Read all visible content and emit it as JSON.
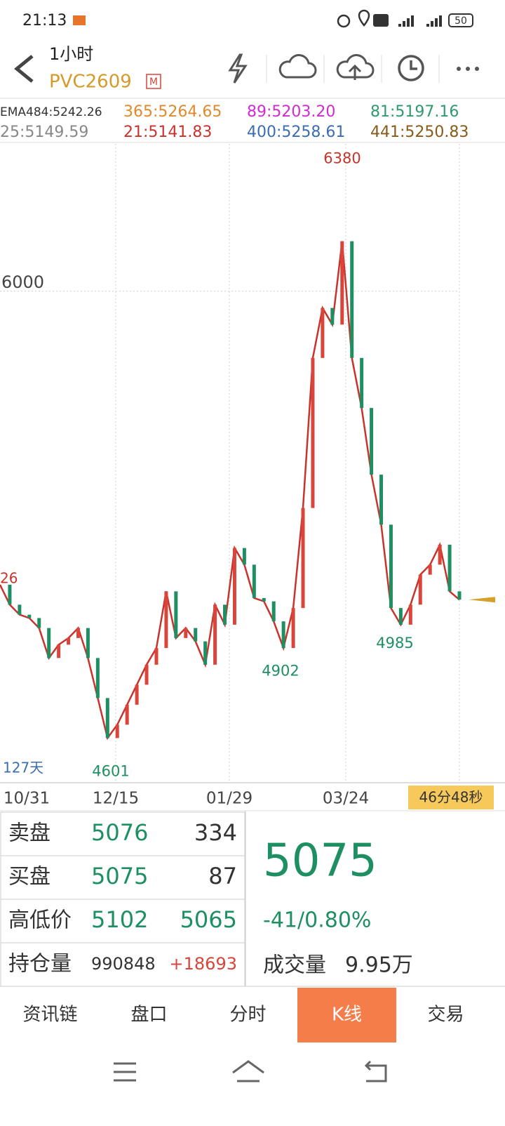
{
  "status_bar": {
    "time": "21:13",
    "battery": "50"
  },
  "header": {
    "period": "1小时",
    "symbol": "PVC2609",
    "badge": "M"
  },
  "indicators": [
    {
      "label": "EMA484:5242.26",
      "color": "#333333"
    },
    {
      "label": "365:5264.65",
      "color": "#e08a2c"
    },
    {
      "label": "89:5203.20",
      "color": "#d12bd1"
    },
    {
      "label": "81:5197.16",
      "color": "#2e9a6e"
    },
    {
      "label": "25:5149.59",
      "color": "#888888"
    },
    {
      "label": "21:5141.83",
      "color": "#c8342c"
    },
    {
      "label": "400:5258.61",
      "color": "#3b6db3"
    },
    {
      "label": "441:5250.83",
      "color": "#8a5a1a"
    }
  ],
  "chart": {
    "ylim": [
      4526,
      6442
    ],
    "yticks": [
      6000
    ],
    "values": [
      5120,
      5060,
      5030,
      5020,
      4990,
      4900,
      4940,
      4960,
      4990,
      4900,
      4780,
      4660,
      4700,
      4760,
      4820,
      4880,
      4930,
      5100,
      4960,
      4990,
      4950,
      4880,
      5060,
      5000,
      5230,
      5180,
      5080,
      5070,
      5010,
      4930,
      5050,
      5350,
      5800,
      5950,
      5900,
      6150,
      5800,
      5650,
      5450,
      5300,
      5050,
      5000,
      5060,
      5150,
      5180,
      5240,
      5100,
      5075
    ],
    "extremes": [
      6380,
      4902,
      4985,
      4601
    ],
    "edge_label": "26",
    "span_label": "127天",
    "x_labels": [
      "10/31",
      "12/15",
      "01/29",
      "03/24"
    ],
    "countdown": "46分48秒"
  },
  "quote": {
    "rows": [
      [
        "卖盘",
        "5076",
        "334"
      ],
      [
        "买盘",
        "5075",
        "87"
      ],
      [
        "高低价",
        "5102",
        "5065"
      ],
      [
        "持仓量",
        "990848",
        "+18693"
      ]
    ],
    "last": "5075",
    "change": "-41/0.80%",
    "volume_label": "成交量",
    "volume": "9.95万"
  },
  "tabs": [
    "资讯链",
    "盘口",
    "分时",
    "K线",
    "交易"
  ],
  "active_tab": 3
}
